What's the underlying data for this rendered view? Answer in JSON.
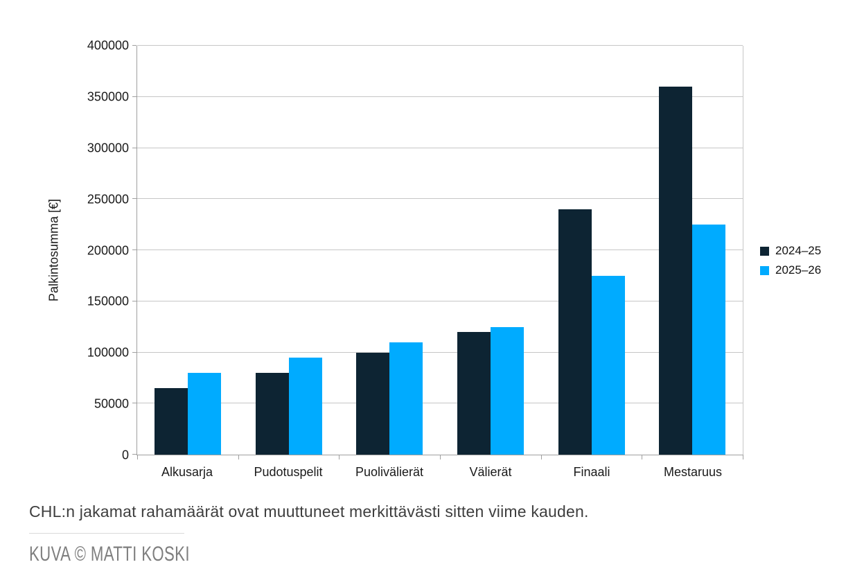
{
  "chart_data": {
    "type": "bar",
    "title": "",
    "xlabel": "",
    "ylabel": "Palkintosumma [€]",
    "categories": [
      "Alkusarja",
      "Pudotuspelit",
      "Puolivälierät",
      "Välierät",
      "Finaali",
      "Mestaruus"
    ],
    "series": [
      {
        "name": "2024–25",
        "color": "#0d2433",
        "values": [
          65000,
          80000,
          100000,
          120000,
          240000,
          360000
        ]
      },
      {
        "name": "2025–26",
        "color": "#00abff",
        "values": [
          80000,
          95000,
          110000,
          125000,
          175000,
          225000
        ]
      }
    ],
    "ylim": [
      0,
      400000
    ],
    "ytick_step": 50000,
    "ytick_labels": [
      "0",
      "50000",
      "100000",
      "150000",
      "200000",
      "250000",
      "300000",
      "350000",
      "400000"
    ],
    "grid": "horizontal",
    "legend_position": "right"
  },
  "caption": "CHL:n jakamat rahamäärät ovat muuttuneet merkittävästi sitten viime kauden.",
  "credit": "KUVA © MATTI KOSKI"
}
